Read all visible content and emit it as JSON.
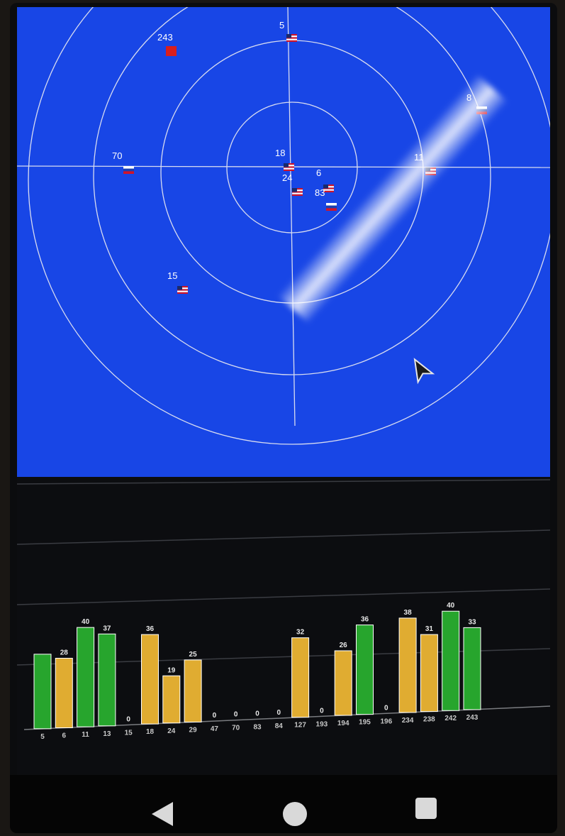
{
  "sky_plot": {
    "satellites": [
      {
        "id": "243",
        "flag": "china"
      },
      {
        "id": "5",
        "flag": "usa"
      },
      {
        "id": "8",
        "flag": "russia"
      },
      {
        "id": "70",
        "flag": "russia"
      },
      {
        "id": "18",
        "flag": "usa"
      },
      {
        "id": "24",
        "flag": "usa"
      },
      {
        "id": "6",
        "flag": "usa"
      },
      {
        "id": "83",
        "flag": "russia"
      },
      {
        "id": "11",
        "flag": "usa"
      },
      {
        "id": "15",
        "flag": "usa"
      }
    ]
  },
  "colors": {
    "sky_background": "#1846e6",
    "bar_green": "#27a52d",
    "bar_yellow": "#e0ac31",
    "flag_red": "#d0142a",
    "china_red": "#d81e1e"
  },
  "icons": {
    "heading": "navigation-arrow-icon",
    "back": "back-triangle-icon",
    "home": "home-circle-icon",
    "recents": "recents-square-icon"
  },
  "signal_bars": {
    "type": "bar",
    "bars": [
      {
        "id": "5",
        "value": "",
        "level": 30,
        "color": "green"
      },
      {
        "id": "6",
        "value": "28",
        "level": 28,
        "color": "yellow"
      },
      {
        "id": "11",
        "value": "40",
        "level": 40,
        "color": "green"
      },
      {
        "id": "13",
        "value": "37",
        "level": 37,
        "color": "green"
      },
      {
        "id": "15",
        "value": "0",
        "level": 0,
        "color": "yellow"
      },
      {
        "id": "18",
        "value": "36",
        "level": 36,
        "color": "yellow"
      },
      {
        "id": "24",
        "value": "19",
        "level": 19,
        "color": "yellow"
      },
      {
        "id": "29",
        "value": "25",
        "level": 25,
        "color": "yellow"
      },
      {
        "id": "47",
        "value": "0",
        "level": 0,
        "color": "yellow"
      },
      {
        "id": "70",
        "value": "0",
        "level": 0,
        "color": "yellow"
      },
      {
        "id": "83",
        "value": "0",
        "level": 0,
        "color": "yellow"
      },
      {
        "id": "84",
        "value": "0",
        "level": 0,
        "color": "yellow"
      },
      {
        "id": "127",
        "value": "32",
        "level": 32,
        "color": "yellow"
      },
      {
        "id": "193",
        "value": "0",
        "level": 0,
        "color": "yellow"
      },
      {
        "id": "194",
        "value": "26",
        "level": 26,
        "color": "yellow"
      },
      {
        "id": "195",
        "value": "36",
        "level": 36,
        "color": "green"
      },
      {
        "id": "196",
        "value": "0",
        "level": 0,
        "color": "yellow"
      },
      {
        "id": "234",
        "value": "38",
        "level": 38,
        "color": "yellow"
      },
      {
        "id": "238",
        "value": "31",
        "level": 31,
        "color": "yellow"
      },
      {
        "id": "242",
        "value": "40",
        "level": 40,
        "color": "green"
      },
      {
        "id": "243",
        "value": "33",
        "level": 33,
        "color": "green"
      }
    ]
  }
}
